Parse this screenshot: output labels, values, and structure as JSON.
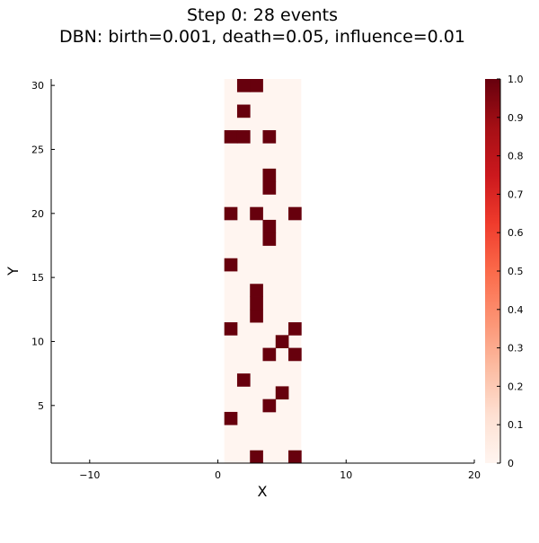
{
  "chart_data": {
    "type": "heatmap",
    "title": "Step 0: 28 events",
    "subtitle": "DBN: birth=0.001, death=0.05, influence=0.01",
    "xlabel": "X",
    "ylabel": "Y",
    "xlim": [
      -13,
      20
    ],
    "ylim": [
      0.5,
      30.5
    ],
    "x_ticks": [
      -10,
      0,
      10,
      20
    ],
    "y_ticks": [
      5,
      10,
      15,
      20,
      25,
      30
    ],
    "grid": false,
    "x_range": [
      1,
      6
    ],
    "y_range": [
      1,
      30
    ],
    "background_value": 0,
    "active_value": 1,
    "active_cells": [
      {
        "x": 3,
        "y": 1
      },
      {
        "x": 6,
        "y": 1
      },
      {
        "x": 1,
        "y": 4
      },
      {
        "x": 4,
        "y": 5
      },
      {
        "x": 5,
        "y": 6
      },
      {
        "x": 2,
        "y": 7
      },
      {
        "x": 4,
        "y": 9
      },
      {
        "x": 6,
        "y": 9
      },
      {
        "x": 5,
        "y": 10
      },
      {
        "x": 1,
        "y": 11
      },
      {
        "x": 6,
        "y": 11
      },
      {
        "x": 3,
        "y": 12
      },
      {
        "x": 3,
        "y": 13
      },
      {
        "x": 3,
        "y": 14
      },
      {
        "x": 1,
        "y": 16
      },
      {
        "x": 4,
        "y": 18
      },
      {
        "x": 4,
        "y": 19
      },
      {
        "x": 1,
        "y": 20
      },
      {
        "x": 3,
        "y": 20
      },
      {
        "x": 6,
        "y": 20
      },
      {
        "x": 4,
        "y": 22
      },
      {
        "x": 4,
        "y": 23
      },
      {
        "x": 1,
        "y": 26
      },
      {
        "x": 2,
        "y": 26
      },
      {
        "x": 4,
        "y": 26
      },
      {
        "x": 2,
        "y": 28
      },
      {
        "x": 2,
        "y": 30
      },
      {
        "x": 3,
        "y": 30
      }
    ],
    "colorbar": {
      "range": [
        0,
        1
      ],
      "ticks": [
        "0",
        "0.1",
        "0.2",
        "0.3",
        "0.4",
        "0.5",
        "0.6",
        "0.7",
        "0.8",
        "0.9",
        "1.0"
      ],
      "tick_values": [
        0,
        0.1,
        0.2,
        0.3,
        0.4,
        0.5,
        0.6,
        0.7,
        0.8,
        0.9,
        1.0
      ],
      "colormap": "Reds",
      "low_color": "#fff5f0",
      "high_color": "#67000d"
    }
  }
}
